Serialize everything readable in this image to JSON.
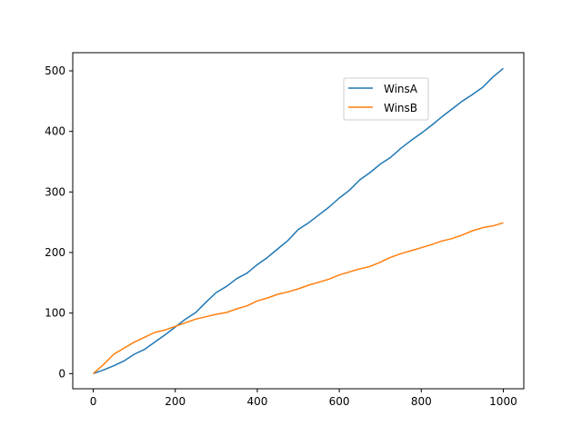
{
  "chart_data": {
    "type": "line",
    "title": "",
    "xlabel": "",
    "ylabel": "",
    "xlim": [
      -50,
      1050
    ],
    "ylim": [
      -25,
      530
    ],
    "xticks": [
      0,
      200,
      400,
      600,
      800,
      1000
    ],
    "yticks": [
      0,
      100,
      200,
      300,
      400,
      500
    ],
    "xtick_labels": [
      "0",
      "200",
      "400",
      "600",
      "800",
      "1000"
    ],
    "ytick_labels": [
      "0",
      "100",
      "200",
      "300",
      "400",
      "500"
    ],
    "grid": false,
    "legend_position": "upper-right",
    "series": [
      {
        "name": "WinsA",
        "color": "#1f77b4",
        "x": [
          0,
          25,
          50,
          75,
          100,
          125,
          150,
          175,
          200,
          225,
          250,
          275,
          300,
          325,
          350,
          375,
          400,
          425,
          450,
          475,
          500,
          525,
          550,
          575,
          600,
          625,
          650,
          675,
          700,
          725,
          750,
          775,
          800,
          825,
          850,
          875,
          900,
          925,
          950,
          975,
          1000
        ],
        "y": [
          0,
          6,
          13,
          21,
          32,
          40,
          52,
          64,
          77,
          90,
          101,
          118,
          134,
          144,
          157,
          166,
          180,
          192,
          206,
          220,
          238,
          249,
          262,
          275,
          290,
          303,
          320,
          332,
          346,
          357,
          372,
          385,
          397,
          410,
          424,
          437,
          450,
          461,
          473,
          490,
          504
        ]
      },
      {
        "name": "WinsB",
        "color": "#ff7f0e",
        "x": [
          0,
          25,
          50,
          75,
          100,
          125,
          150,
          175,
          200,
          225,
          250,
          275,
          300,
          325,
          350,
          375,
          400,
          425,
          450,
          475,
          500,
          525,
          550,
          575,
          600,
          625,
          650,
          675,
          700,
          725,
          750,
          775,
          800,
          825,
          850,
          875,
          900,
          925,
          950,
          975,
          1000
        ],
        "y": [
          0,
          15,
          32,
          42,
          52,
          60,
          68,
          72,
          78,
          84,
          90,
          94,
          98,
          101,
          107,
          112,
          120,
          125,
          131,
          135,
          140,
          146,
          151,
          156,
          163,
          168,
          173,
          177,
          184,
          192,
          198,
          203,
          208,
          213,
          219,
          223,
          229,
          236,
          241,
          244,
          249
        ]
      }
    ]
  }
}
